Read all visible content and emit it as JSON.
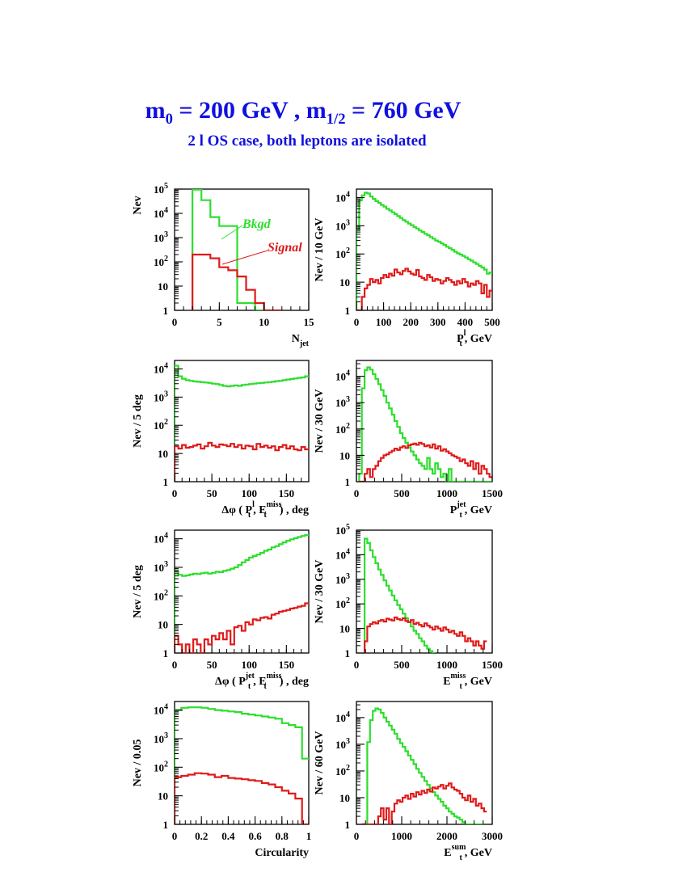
{
  "header": {
    "m0": "m",
    "m0_sub": "0",
    "m0_value": " = 200 GeV ,  ",
    "mhalf": "m",
    "mhalf_sub": "1/2",
    "mhalf_value": " = 760 GeV",
    "subtitle": "2 l OS case,  both leptons are isolated"
  },
  "colors": {
    "background": "#2dde2d",
    "signal": "#e01a1a",
    "title": "#1010e0",
    "axes": "#000000"
  },
  "chart_data": [
    {
      "type": "histogram",
      "ylabel": "Nev",
      "xlabel": {
        "main": "N",
        "sub": "jet",
        "sup": "",
        "suffix": ""
      },
      "xlim": [
        0,
        15
      ],
      "ylim": [
        1,
        100000
      ],
      "yscale": "log",
      "xticks": [
        0,
        5,
        10,
        15
      ],
      "legend": [
        "Bkgd",
        "Signal"
      ],
      "series": [
        {
          "name": "Bkgd",
          "bin_width": 1,
          "start": 2,
          "values": [
            95000,
            35000,
            7000,
            3000,
            3000,
            2,
            2,
            1,
            0.9
          ]
        },
        {
          "name": "Signal",
          "bin_width": 1,
          "start": 2,
          "values": [
            200,
            200,
            140,
            60,
            45,
            25,
            7,
            2,
            1,
            0.9
          ]
        }
      ]
    },
    {
      "type": "histogram",
      "ylabel": "Nev / 10 GeV",
      "xlabel": {
        "main": "P",
        "sub": "t",
        "sup": "l",
        "suffix": ", GeV"
      },
      "xlim": [
        0,
        500
      ],
      "ylim": [
        1,
        20000
      ],
      "yscale": "log",
      "xticks": [
        0,
        100,
        200,
        300,
        400,
        500
      ],
      "series": [
        {
          "name": "Bkgd",
          "bin_width": 10,
          "start": 0,
          "values": [
            700,
            8000,
            12000,
            15000,
            14000,
            11000,
            9000,
            7500,
            6500,
            5500,
            4800,
            4000,
            3500,
            3000,
            2600,
            2200,
            1900,
            1600,
            1400,
            1200,
            1050,
            900,
            800,
            680,
            600,
            520,
            460,
            400,
            350,
            300,
            270,
            240,
            210,
            180,
            160,
            140,
            120,
            105,
            95,
            85,
            75,
            65,
            58,
            50,
            44,
            38,
            33,
            28,
            20,
            22
          ]
        },
        {
          "name": "Signal",
          "bin_width": 10,
          "start": 0,
          "values": [
            0.9,
            0.9,
            3,
            6,
            8,
            13,
            10,
            12,
            9,
            14,
            18,
            15,
            20,
            17,
            28,
            22,
            19,
            25,
            30,
            24,
            20,
            18,
            27,
            16,
            14,
            12,
            18,
            15,
            11,
            13,
            12,
            9,
            11,
            14,
            12,
            10,
            8,
            11,
            9,
            13,
            10,
            7,
            9,
            8,
            11,
            9,
            4,
            8,
            3,
            5
          ]
        }
      ]
    },
    {
      "type": "histogram",
      "ylabel": "Nev / 5 deg",
      "xlabel": {
        "main": "Δφ ( P",
        "sub": "t",
        "sup": "l",
        "suffix": ",  E",
        "sub2": "t",
        "sup2": "miss",
        "suffix2": ") , deg"
      },
      "xlim": [
        0,
        180
      ],
      "ylim": [
        1,
        20000
      ],
      "yscale": "log",
      "xticks": [
        0,
        50,
        100,
        150
      ],
      "series": [
        {
          "name": "Bkgd",
          "bin_width": 5,
          "start": 0,
          "values": [
            13000,
            5500,
            4500,
            4000,
            3800,
            3600,
            3500,
            3400,
            3300,
            3200,
            3000,
            2900,
            2700,
            2500,
            2400,
            2500,
            2600,
            2500,
            2700,
            2800,
            2900,
            3000,
            3100,
            3200,
            3300,
            3400,
            3500,
            3700,
            3800,
            4000,
            4200,
            4400,
            4600,
            4800,
            5000,
            5500
          ]
        },
        {
          "name": "Signal",
          "bin_width": 5,
          "start": 0,
          "values": [
            18,
            15,
            20,
            16,
            17,
            19,
            21,
            15,
            18,
            24,
            19,
            17,
            21,
            20,
            18,
            22,
            17,
            20,
            15,
            19,
            18,
            14,
            22,
            17,
            19,
            16,
            18,
            13,
            17,
            20,
            15,
            18,
            14,
            13,
            17,
            14
          ]
        }
      ]
    },
    {
      "type": "histogram",
      "ylabel": "Nev / 30 GeV",
      "xlabel": {
        "main": "P",
        "sub": "t",
        "sup": "jet",
        "suffix": ", GeV"
      },
      "xlim": [
        0,
        1500
      ],
      "ylim": [
        1,
        40000
      ],
      "yscale": "log",
      "xticks": [
        0,
        500,
        1000,
        1500
      ],
      "series": [
        {
          "name": "Bkgd",
          "bin_width": 30,
          "start": 30,
          "values": [
            2,
            3500,
            17000,
            22000,
            18000,
            12000,
            8000,
            5000,
            3000,
            1800,
            1000,
            600,
            350,
            200,
            120,
            70,
            45,
            30,
            20,
            14,
            10,
            7,
            5,
            4,
            3,
            8,
            3,
            2,
            5,
            3,
            1.5,
            2,
            0.9,
            3,
            0.9,
            0.9,
            0.9,
            0.9,
            0.9,
            0.9,
            0.9,
            0.9,
            0.9,
            0.9,
            0.9,
            0.9,
            0.9,
            0.9,
            0.9
          ]
        },
        {
          "name": "Signal",
          "bin_width": 30,
          "start": 30,
          "values": [
            0.9,
            0.9,
            2,
            3,
            1.5,
            3,
            4,
            6,
            8,
            10,
            11,
            13,
            15,
            18,
            16,
            20,
            22,
            19,
            24,
            26,
            28,
            25,
            30,
            27,
            22,
            24,
            20,
            26,
            18,
            22,
            15,
            17,
            14,
            12,
            10,
            9,
            8,
            6,
            7,
            5,
            4,
            6,
            3,
            5,
            2,
            4,
            3,
            2,
            1.5
          ]
        }
      ]
    },
    {
      "type": "histogram",
      "ylabel": "Nev / 5 deg",
      "xlabel": {
        "main": "Δφ ( P",
        "sub": "t",
        "sup": "jet",
        "suffix": ",  E",
        "sub2": "t",
        "sup2": "miss",
        "suffix2": ") , deg"
      },
      "xlim": [
        0,
        180
      ],
      "ylim": [
        1,
        20000
      ],
      "yscale": "log",
      "xticks": [
        0,
        50,
        100,
        150
      ],
      "series": [
        {
          "name": "Bkgd",
          "bin_width": 5,
          "start": 0,
          "values": [
            700,
            550,
            500,
            520,
            560,
            600,
            580,
            620,
            650,
            600,
            640,
            700,
            680,
            750,
            800,
            900,
            1000,
            1200,
            1500,
            1800,
            2200,
            2500,
            2800,
            3200,
            3800,
            4200,
            5000,
            5500,
            6500,
            7500,
            8500,
            9500,
            10500,
            11500,
            12500,
            13500
          ]
        },
        {
          "name": "Signal",
          "bin_width": 5,
          "start": 0,
          "values": [
            4,
            2,
            1,
            2,
            1,
            3,
            2,
            1,
            3,
            2,
            4,
            3,
            5,
            3,
            6,
            2,
            8,
            9,
            6,
            12,
            10,
            15,
            14,
            17,
            18,
            16,
            22,
            24,
            28,
            30,
            32,
            36,
            38,
            42,
            45,
            55
          ]
        }
      ]
    },
    {
      "type": "histogram",
      "ylabel": "Nev / 30 GeV",
      "xlabel": {
        "main": "E",
        "sub": "t",
        "sup": "miss",
        "suffix": ", GeV"
      },
      "xlim": [
        0,
        1500
      ],
      "ylim": [
        1,
        100000
      ],
      "yscale": "log",
      "xticks": [
        0,
        500,
        1000,
        1500
      ],
      "series": [
        {
          "name": "Bkgd",
          "bin_width": 30,
          "start": 90,
          "values": [
            45000,
            30000,
            15000,
            8000,
            4500,
            2500,
            1500,
            900,
            550,
            350,
            220,
            140,
            90,
            60,
            40,
            26,
            18,
            12,
            8,
            6,
            4,
            3,
            2,
            1.5,
            1.2,
            0.9
          ]
        },
        {
          "name": "Signal",
          "bin_width": 30,
          "start": 90,
          "values": [
            3,
            12,
            15,
            18,
            16,
            20,
            22,
            19,
            25,
            23,
            21,
            28,
            24,
            22,
            26,
            20,
            18,
            22,
            15,
            17,
            14,
            12,
            16,
            13,
            11,
            9,
            12,
            10,
            8,
            11,
            9,
            7,
            8,
            6,
            5,
            7,
            5,
            3,
            4,
            3,
            2,
            3,
            2,
            1.5,
            3
          ]
        }
      ]
    },
    {
      "type": "histogram",
      "ylabel": "Nev / 0.05",
      "xlabel": {
        "main": "Circularity",
        "sub": "",
        "sup": "",
        "suffix": ""
      },
      "xlim": [
        0,
        1
      ],
      "ylim": [
        1,
        20000
      ],
      "yscale": "log",
      "xticks": [
        0,
        0.2,
        0.4,
        0.6,
        0.8,
        1
      ],
      "series": [
        {
          "name": "Bkgd",
          "bin_width": 0.05,
          "start": 0,
          "values": [
            10000,
            12000,
            12500,
            12500,
            12000,
            11000,
            10000,
            9500,
            9000,
            8500,
            7500,
            7000,
            6500,
            6000,
            5500,
            5000,
            3500,
            3000,
            2500,
            200
          ]
        },
        {
          "name": "Signal",
          "bin_width": 0.05,
          "start": 0,
          "values": [
            45,
            50,
            55,
            62,
            60,
            55,
            45,
            50,
            42,
            40,
            38,
            35,
            33,
            28,
            25,
            20,
            15,
            12,
            8,
            1
          ]
        }
      ]
    },
    {
      "type": "histogram",
      "ylabel": "Nev / 60 GeV",
      "xlabel": {
        "main": "E",
        "sub": "t",
        "sup": "sum",
        "suffix": ", GeV"
      },
      "xlim": [
        0,
        3000
      ],
      "ylim": [
        1,
        40000
      ],
      "yscale": "log",
      "xticks": [
        0,
        1000,
        2000,
        3000
      ],
      "series": [
        {
          "name": "Bkgd",
          "bin_width": 60,
          "start": 120,
          "values": [
            0.9,
            0.9,
            1200,
            8000,
            18000,
            22000,
            20000,
            15000,
            10000,
            7000,
            5000,
            3500,
            2500,
            1600,
            1100,
            800,
            550,
            380,
            260,
            180,
            120,
            85,
            60,
            42,
            30,
            22,
            16,
            12,
            9,
            7,
            5,
            4,
            3,
            2.5,
            2,
            1.8,
            1.5,
            1.2,
            1,
            0.9,
            0.9,
            0.9,
            0.9,
            0.9,
            0.9
          ]
        },
        {
          "name": "Signal",
          "bin_width": 60,
          "start": 120,
          "values": [
            0.9,
            0.9,
            0.9,
            0.9,
            0.9,
            0.9,
            2,
            4,
            1.5,
            4,
            0.9,
            3,
            6,
            8,
            7,
            10,
            12,
            9,
            14,
            11,
            16,
            13,
            18,
            15,
            20,
            17,
            24,
            22,
            26,
            30,
            22,
            28,
            34,
            24,
            20,
            18,
            14,
            10,
            8,
            12,
            7,
            9,
            5,
            6,
            4,
            3
          ]
        }
      ]
    }
  ]
}
